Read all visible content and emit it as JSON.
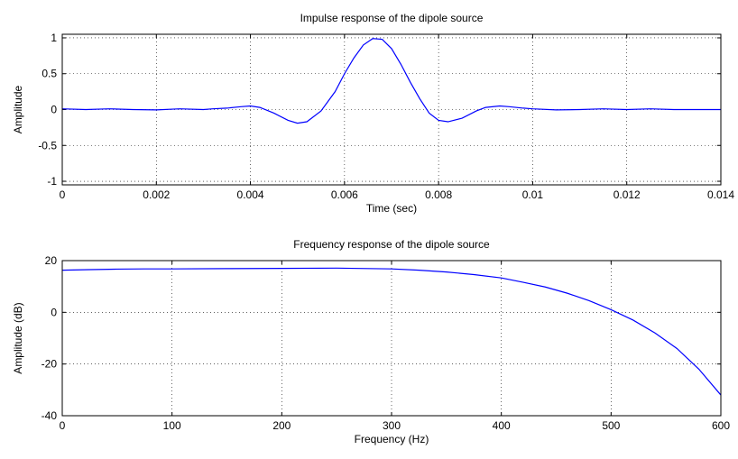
{
  "chart_data": [
    {
      "type": "line",
      "title": "Impulse response of the dipole source",
      "xlabel": "Time (sec)",
      "ylabel": "Amplitude",
      "xlim": [
        0,
        0.014
      ],
      "ylim": [
        -1.05,
        1.05
      ],
      "xticks": [
        0,
        0.002,
        0.004,
        0.006,
        0.008,
        0.01,
        0.012,
        0.014
      ],
      "xtick_labels": [
        "0",
        "0.002",
        "0.004",
        "0.006",
        "0.008",
        "0.01",
        "0.012",
        "0.014"
      ],
      "yticks": [
        1,
        0.5,
        0,
        -0.5,
        -1
      ],
      "ytick_labels": [
        "1",
        "0.5",
        "0",
        "-0.5",
        "-1"
      ],
      "grid": true,
      "color": "#0000ff",
      "series": [
        {
          "x": [
            0,
            0.0005,
            0.001,
            0.0015,
            0.002,
            0.0025,
            0.003,
            0.0032,
            0.0035,
            0.0038,
            0.004,
            0.0042,
            0.0045,
            0.0048,
            0.005,
            0.0052,
            0.0055,
            0.0058,
            0.006,
            0.0062,
            0.0064,
            0.0066,
            0.0068,
            0.007,
            0.0072,
            0.0074,
            0.0076,
            0.0078,
            0.008,
            0.0082,
            0.0085,
            0.0088,
            0.009,
            0.0093,
            0.0095,
            0.0098,
            0.01,
            0.0105,
            0.011,
            0.0115,
            0.012,
            0.0125,
            0.013,
            0.0135,
            0.014
          ],
          "y": [
            0.01,
            0,
            0.01,
            0,
            -0.005,
            0.01,
            0.0,
            0.01,
            0.02,
            0.04,
            0.05,
            0.03,
            -0.05,
            -0.15,
            -0.19,
            -0.17,
            -0.02,
            0.25,
            0.5,
            0.72,
            0.9,
            0.99,
            0.98,
            0.85,
            0.63,
            0.38,
            0.15,
            -0.05,
            -0.15,
            -0.17,
            -0.12,
            -0.02,
            0.03,
            0.05,
            0.04,
            0.02,
            0.01,
            -0.005,
            0.0,
            0.01,
            0.0,
            0.01,
            0.0,
            0.0,
            0.0
          ]
        }
      ]
    },
    {
      "type": "line",
      "title": "Frequency response of the dipole source",
      "xlabel": "Frequency (Hz)",
      "ylabel": "Amplitude (dB)",
      "xlim": [
        0,
        600
      ],
      "ylim": [
        -40,
        20
      ],
      "xticks": [
        0,
        100,
        200,
        300,
        400,
        500,
        600
      ],
      "xtick_labels": [
        "0",
        "100",
        "200",
        "300",
        "400",
        "500",
        "600"
      ],
      "yticks": [
        20,
        0,
        -20,
        -40
      ],
      "ytick_labels": [
        "20",
        "0",
        "-20",
        "-40"
      ],
      "grid": true,
      "color": "#0000ff",
      "series": [
        {
          "x": [
            0,
            25,
            50,
            75,
            100,
            150,
            200,
            250,
            300,
            325,
            350,
            375,
            400,
            420,
            440,
            460,
            480,
            500,
            520,
            540,
            560,
            580,
            600
          ],
          "y": [
            16.3,
            16.5,
            16.7,
            16.8,
            16.8,
            16.9,
            17.0,
            17.1,
            16.8,
            16.3,
            15.6,
            14.6,
            13.3,
            11.6,
            9.8,
            7.4,
            4.5,
            1.0,
            -3.0,
            -8.0,
            -14.0,
            -22.0,
            -32.0
          ]
        }
      ]
    }
  ]
}
